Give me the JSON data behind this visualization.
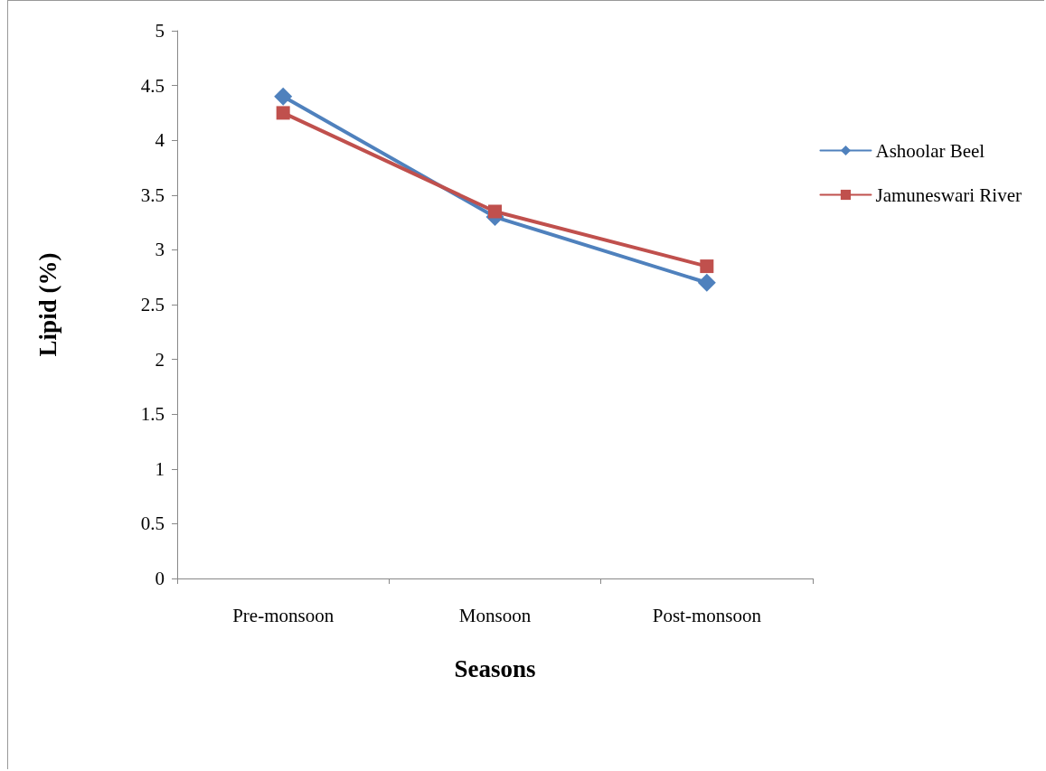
{
  "chart_data": {
    "type": "line",
    "xlabel": "Seasons",
    "ylabel": "Lipid (%)",
    "categories": [
      "Pre-monsoon",
      "Monsoon",
      "Post-monsoon"
    ],
    "series": [
      {
        "name": "Ashoolar Beel",
        "color": "#4f81bd",
        "marker": "diamond",
        "values": [
          4.4,
          3.3,
          2.7
        ]
      },
      {
        "name": "Jamuneswari River",
        "color": "#c0504d",
        "marker": "square",
        "values": [
          4.25,
          3.35,
          2.85
        ]
      }
    ],
    "ylim": [
      0,
      5
    ],
    "yticks": [
      0,
      0.5,
      1,
      1.5,
      2,
      2.5,
      3,
      3.5,
      4,
      4.5,
      5
    ],
    "grid": false,
    "legend": "right",
    "line_style": "solid"
  }
}
